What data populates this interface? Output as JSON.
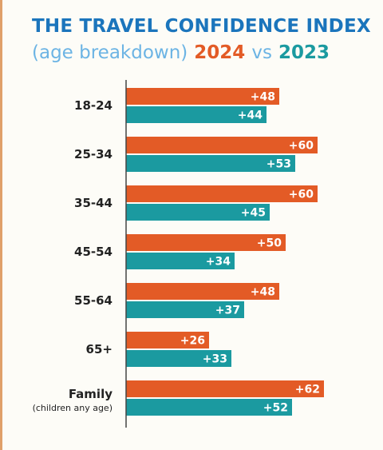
{
  "header": {
    "title": "THE TRAVEL CONFIDENCE INDEX",
    "subtitle": "(age breakdown)",
    "year_current": "2024",
    "vs": "vs",
    "year_previous": "2023"
  },
  "colors": {
    "title": "#1b75bc",
    "subtitle": "#6cb4e4",
    "series_2024": "#e35b26",
    "series_2023": "#1b9aa0",
    "axis": "#444444"
  },
  "chart_data": {
    "type": "bar",
    "orientation": "horizontal",
    "title": "THE TRAVEL CONFIDENCE INDEX",
    "subtitle": "(age breakdown) 2024 vs 2023",
    "categories": [
      "18-24",
      "25-34",
      "35-44",
      "45-54",
      "55-64",
      "65+",
      "Family"
    ],
    "category_sublabels": [
      "",
      "",
      "",
      "",
      "",
      "",
      "(children any age)"
    ],
    "series": [
      {
        "name": "2024",
        "values": [
          48,
          60,
          60,
          50,
          48,
          26,
          62
        ],
        "labels": [
          "+48",
          "+60",
          "+60",
          "+50",
          "+48",
          "+26",
          "+62"
        ]
      },
      {
        "name": "2023",
        "values": [
          44,
          53,
          45,
          34,
          37,
          33,
          52
        ],
        "labels": [
          "+44",
          "+53",
          "+45",
          "+34",
          "+37",
          "+33",
          "+52"
        ]
      }
    ],
    "xlim": [
      0,
      62
    ],
    "grid": false,
    "legend": "title"
  }
}
